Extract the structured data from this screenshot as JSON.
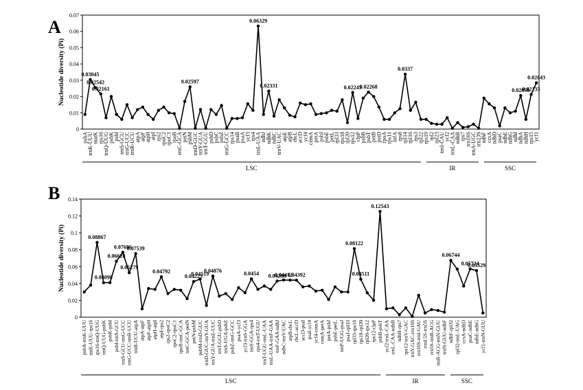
{
  "chart_data": [
    {
      "type": "line",
      "panel_label": "A",
      "y_label": "Nucleotide diversity (Pi)",
      "color": "#000000",
      "ylim": [
        0,
        0.07
      ],
      "yticks": [
        0,
        0.01,
        0.02,
        0.03,
        0.04,
        0.05,
        0.06,
        0.07
      ],
      "regions": [
        "LSC",
        "IR",
        "SSC"
      ],
      "categories": [
        "psbA",
        "trnK-UUU",
        "matK",
        "rps16",
        "trnQ-UUG",
        "psbK",
        "psbI",
        "trnS-GCU",
        "trnG-UCC",
        "trnR-UCU",
        "atpA",
        "atpF",
        "atpH",
        "atpI",
        "rps2",
        "rpoC2",
        "rpoC1",
        "rpoB",
        "trnC-GCA",
        "petN",
        "psbM",
        "trnD-GUC",
        "trnY-GUA",
        "trnT-GGU",
        "psbD",
        "psbC",
        "psbZ",
        "trnG-GCC",
        "rps14",
        "psaB",
        "psaA",
        "ycf3",
        "rps4",
        "trnL-UAA",
        "ndhJ",
        "ndhK",
        "ndhC",
        "trnV-UAC",
        "atpE",
        "atpB",
        "rbcL",
        "accD",
        "ycf4",
        "cemA",
        "petA",
        "psbJ",
        "psbE",
        "petL",
        "rpl33",
        "rps18",
        "rpl20",
        "rps12",
        "clpP",
        "psbB",
        "psbT",
        "petB",
        "petD",
        "rpoA",
        "rps11",
        "infA",
        "rps8",
        "rpl14",
        "rpl16",
        "rps3",
        "rpl22",
        "rps19",
        "rpl2",
        "rpl23",
        "trnI-CAU",
        "ycf2",
        "trnL-CAA",
        "ndhB",
        "rps7",
        "rrn16S",
        "trnA-UGC",
        "rrn23S",
        "ndhF",
        "ccsA",
        "ndhD",
        "psaC",
        "ndhE",
        "ndhG",
        "ndhI",
        "ndhA",
        "ndhH",
        "rps15",
        "ycf1"
      ],
      "values": [
        0.009,
        0.03045,
        0.02542,
        0.02161,
        0.007,
        0.02,
        0.009,
        0.006,
        0.015,
        0.007,
        0.012,
        0.0135,
        0.009,
        0.006,
        0.0115,
        0.0135,
        0.01,
        0.0095,
        0.0005,
        0.017,
        0.02597,
        0.0005,
        0.012,
        0.0005,
        0.012,
        0.009,
        0.0145,
        0.0005,
        0.0065,
        0.0065,
        0.007,
        0.0155,
        0.0115,
        0.06329,
        0.009,
        0.02331,
        0.008,
        0.018,
        0.013,
        0.0085,
        0.0075,
        0.016,
        0.015,
        0.0155,
        0.009,
        0.0095,
        0.01,
        0.0115,
        0.011,
        0.018,
        0.004,
        0.02245,
        0.0065,
        0.019,
        0.02268,
        0.02,
        0.0135,
        0.006,
        0.006,
        0.01,
        0.0125,
        0.0337,
        0.0115,
        0.0165,
        0.006,
        0.006,
        0.0035,
        0.003,
        0.003,
        0.007,
        0.0005,
        0.004,
        0.001,
        0.0015,
        0.003,
        0.0005,
        0.019,
        0.0155,
        0.013,
        0.002,
        0.013,
        0.01,
        0.011,
        0.02058,
        0.006,
        0.02133,
        0.02843
      ],
      "value_labels": [
        null,
        "0.03045",
        "0.02542",
        "0.02161",
        null,
        null,
        null,
        null,
        null,
        null,
        null,
        null,
        null,
        null,
        null,
        null,
        null,
        null,
        null,
        null,
        "0.02597",
        null,
        null,
        null,
        null,
        null,
        null,
        null,
        null,
        null,
        null,
        null,
        null,
        "0.06329",
        null,
        "0.02331",
        null,
        null,
        null,
        null,
        null,
        null,
        null,
        null,
        null,
        null,
        null,
        null,
        null,
        null,
        null,
        "0.02245",
        null,
        null,
        "0.02268",
        null,
        null,
        null,
        null,
        null,
        null,
        "0.0337",
        null,
        null,
        null,
        null,
        null,
        null,
        null,
        null,
        null,
        null,
        null,
        null,
        null,
        null,
        null,
        null,
        null,
        null,
        null,
        null,
        null,
        "0.02058",
        null,
        "0.02133",
        "0.02843"
      ]
    },
    {
      "type": "line",
      "panel_label": "B",
      "y_label": "Nucleotide diversity (Pi)",
      "color": "#000000",
      "ylim": [
        0,
        0.14
      ],
      "yticks": [
        0,
        0.02,
        0.04,
        0.06,
        0.08,
        0.1,
        0.12,
        0.14
      ],
      "regions": [
        "LSC",
        "IR",
        "SSC"
      ],
      "categories": [
        "psbA-trnK-UUU",
        "trnK-UUU-rps16",
        "rps16-trnQ-UUG",
        "trnQ-UUG-psbK",
        "psbK-psbI",
        "psbI-trnS-GCU",
        "trnS-GCU-trnG-UCC",
        "trnG-UCC-trnR-UCU",
        "trnR-UCU-atpA",
        "atpA-atpF",
        "atpF-atpH",
        "atpH-atpI",
        "atpI-rps2",
        "rps2-rpoC2",
        "rpoC2-rpoC1",
        "rpoB-trnC-GCA",
        "trnC-GCA-petN",
        "petN-psbM",
        "psbM-trnD-GUC",
        "trnD-GUC-trnY-GUA",
        "trnY-GUA-trnE-UUC",
        "trnT-GGU-psbD",
        "trnS-UGA-psbZ",
        "psbZ-trnG-GCC",
        "psaA-ycf3",
        "ycf3-trnS-GGA",
        "trnS-GGA-rps4",
        "rps4-trnT-UGU",
        "trnT-UGU-trnL-UAA",
        "trnL-UAA-trnF-GAA",
        "trnF-GAA-ndhJ",
        "ndhC-trnV-UAC",
        "atpB-rbcL",
        "rbcL-accD",
        "accD-psaI",
        "psaI-ycf4",
        "ycf4-cemA",
        "cemA-petA",
        "petA-psbJ",
        "psbE-petL",
        "trnP-UGG-psaJ",
        "psaJ-rpl33",
        "rpl33-rps18",
        "rps18-rpl20",
        "rpl20-rps12",
        "rps12-clpP",
        "psbB-psbT",
        "ycf2-trnL-CAA",
        "trnL-CAA-ndhB",
        "ndhB-rps7",
        "rps12-trnV-GAC",
        "trnV-GAC-rrn16S",
        "rrn16S-trnI-GAU",
        "rrn4.5S-rrn5S",
        "rrn5S-trnR-ACG",
        "trnR-ACG-trnN-GUU",
        "trnN-GUU-ndhF",
        "ndhF-rpl32",
        "rpl32-trnL-UAG",
        "ccsA-ndhD",
        "psaC-ndhE",
        "ndhE-ndhG",
        "ycf1-trnN-GUU"
      ],
      "values": [
        0.03,
        0.038,
        0.08867,
        0.04098,
        0.041,
        0.06628,
        0.07696,
        0.05279,
        0.07539,
        0.01,
        0.034,
        0.033,
        0.04792,
        0.028,
        0.033,
        0.032,
        0.022,
        0.04223,
        0.04519,
        0.014,
        0.04876,
        0.025,
        0.028,
        0.021,
        0.035,
        0.029,
        0.0454,
        0.033,
        0.037,
        0.033,
        0.04288,
        0.04412,
        0.044,
        0.04392,
        0.036,
        0.037,
        0.031,
        0.032,
        0.021,
        0.036,
        0.03,
        0.03,
        0.08122,
        0.04511,
        0.029,
        0.02,
        0.12543,
        0.01,
        0.011,
        0.003,
        0.011,
        0.001,
        0.026,
        0.005,
        0.009,
        0.008,
        0.006,
        0.06744,
        0.057,
        0.037,
        0.05724,
        0.05529,
        0.005
      ],
      "value_labels": [
        null,
        null,
        "0.08867",
        "0.04098",
        null,
        "0.06628",
        "0.07696",
        "0.05279",
        "0.07539",
        null,
        null,
        null,
        "0.04792",
        null,
        null,
        null,
        null,
        "0.04223",
        "0.04519",
        null,
        "0.04876",
        null,
        null,
        null,
        null,
        null,
        "0.0454",
        null,
        null,
        null,
        "0.04288",
        "0.04412",
        null,
        "0.04392",
        null,
        null,
        null,
        null,
        null,
        null,
        null,
        null,
        "0.08122",
        "0.04511",
        null,
        null,
        "0.12543",
        null,
        null,
        null,
        null,
        null,
        null,
        null,
        null,
        null,
        null,
        "0.06744",
        null,
        null,
        "0.05724",
        "0.05529",
        null
      ]
    }
  ]
}
